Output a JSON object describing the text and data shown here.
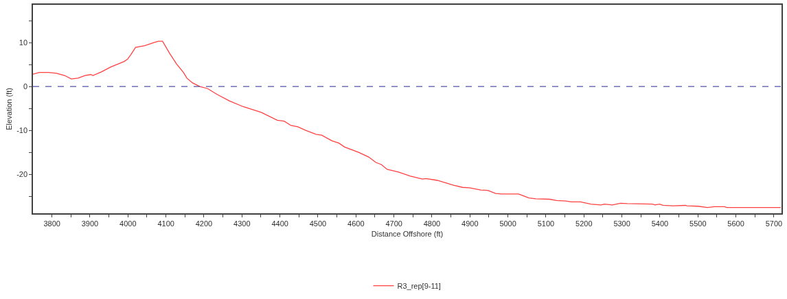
{
  "chart_data": {
    "type": "line",
    "xlabel": "Distance Offshore (ft)",
    "ylabel": "Elevation (ft)",
    "xlim": [
      3750,
      5720
    ],
    "ylim": [
      -28.9,
      18.6
    ],
    "xticks": [
      3800,
      {
        "value": 3850,
        "label": null
      },
      3900,
      {
        "value": 3950,
        "label": null
      },
      4000,
      {
        "value": 4050,
        "label": null
      },
      4100,
      {
        "value": 4150,
        "label": null
      },
      4200,
      {
        "value": 4250,
        "label": null
      },
      4300,
      {
        "value": 4350,
        "label": null
      },
      4400,
      {
        "value": 4450,
        "label": null
      },
      4500,
      {
        "value": 4550,
        "label": null
      },
      4600,
      {
        "value": 4650,
        "label": null
      },
      4700,
      {
        "value": 4750,
        "label": null
      },
      4800,
      {
        "value": 4850,
        "label": null
      },
      4900,
      {
        "value": 4950,
        "label": null
      },
      5000,
      {
        "value": 5050,
        "label": null
      },
      5100,
      {
        "value": 5150,
        "label": null
      },
      5200,
      {
        "value": 5250,
        "label": null
      },
      5300,
      {
        "value": 5350,
        "label": null
      },
      5400,
      {
        "value": 5450,
        "label": null
      },
      5500,
      {
        "value": 5550,
        "label": null
      },
      5600,
      {
        "value": 5650,
        "label": null
      },
      5700
    ],
    "yticks": [
      {
        "value": 15,
        "label": null
      },
      10,
      {
        "value": 5,
        "label": null
      },
      0,
      {
        "value": -5,
        "label": null
      },
      -10,
      {
        "value": -15,
        "label": null
      },
      -20,
      {
        "value": -25,
        "label": null
      }
    ],
    "legend": "bottom",
    "marker": "none",
    "line_style": "solid",
    "ref_lines": [
      {
        "axis": "y",
        "value": 0,
        "color": "#5050a8",
        "line_style": "dashed"
      }
    ],
    "series": [
      {
        "name": "R3_rep[9-11]",
        "color": "#ff4040",
        "x": [
          3750,
          3767,
          3791,
          3812,
          3833,
          3851,
          3869,
          3887,
          3902,
          3908,
          3930,
          3954,
          3990,
          3999,
          4008,
          4020,
          4044,
          4068,
          4080,
          4091,
          4110,
          4128,
          4146,
          4155,
          4170,
          4189,
          4210,
          4234,
          4267,
          4303,
          4351,
          4393,
          4411,
          4429,
          4447,
          4468,
          4495,
          4510,
          4537,
          4555,
          4570,
          4607,
          4634,
          4652,
          4667,
          4682,
          4712,
          4742,
          4775,
          4784,
          4814,
          4857,
          4881,
          4899,
          4929,
          4947,
          4968,
          4983,
          5028,
          5055,
          5073,
          5110,
          5128,
          5152,
          5167,
          5191,
          5218,
          5245,
          5254,
          5275,
          5296,
          5314,
          5381,
          5387,
          5399,
          5408,
          5435,
          5468,
          5471,
          5501,
          5525,
          5543,
          5570,
          5576,
          5718
        ],
        "values": [
          2.8,
          3.2,
          3.2,
          3.0,
          2.5,
          1.7,
          1.9,
          2.5,
          2.7,
          2.5,
          3.3,
          4.4,
          5.7,
          6.2,
          7.3,
          8.9,
          9.3,
          10.0,
          10.3,
          10.3,
          7.5,
          5.1,
          3.2,
          1.9,
          0.8,
          0,
          -0.5,
          -1.8,
          -3.3,
          -4.6,
          -5.9,
          -7.7,
          -7.9,
          -8.9,
          -9.2,
          -10.0,
          -10.9,
          -11.1,
          -12.4,
          -12.9,
          -13.8,
          -15.0,
          -16.1,
          -17.3,
          -17.8,
          -18.9,
          -19.5,
          -20.4,
          -21.1,
          -21.0,
          -21.4,
          -22.5,
          -23.0,
          -23.1,
          -23.6,
          -23.7,
          -24.4,
          -24.5,
          -24.5,
          -25.4,
          -25.6,
          -25.7,
          -26.0,
          -26.1,
          -26.3,
          -26.3,
          -26.8,
          -27.0,
          -26.8,
          -27.0,
          -26.6,
          -26.7,
          -26.8,
          -27.0,
          -26.8,
          -27.1,
          -27.2,
          -27.1,
          -27.2,
          -27.3,
          -27.6,
          -27.4,
          -27.4,
          -27.6,
          -27.6
        ]
      }
    ]
  }
}
